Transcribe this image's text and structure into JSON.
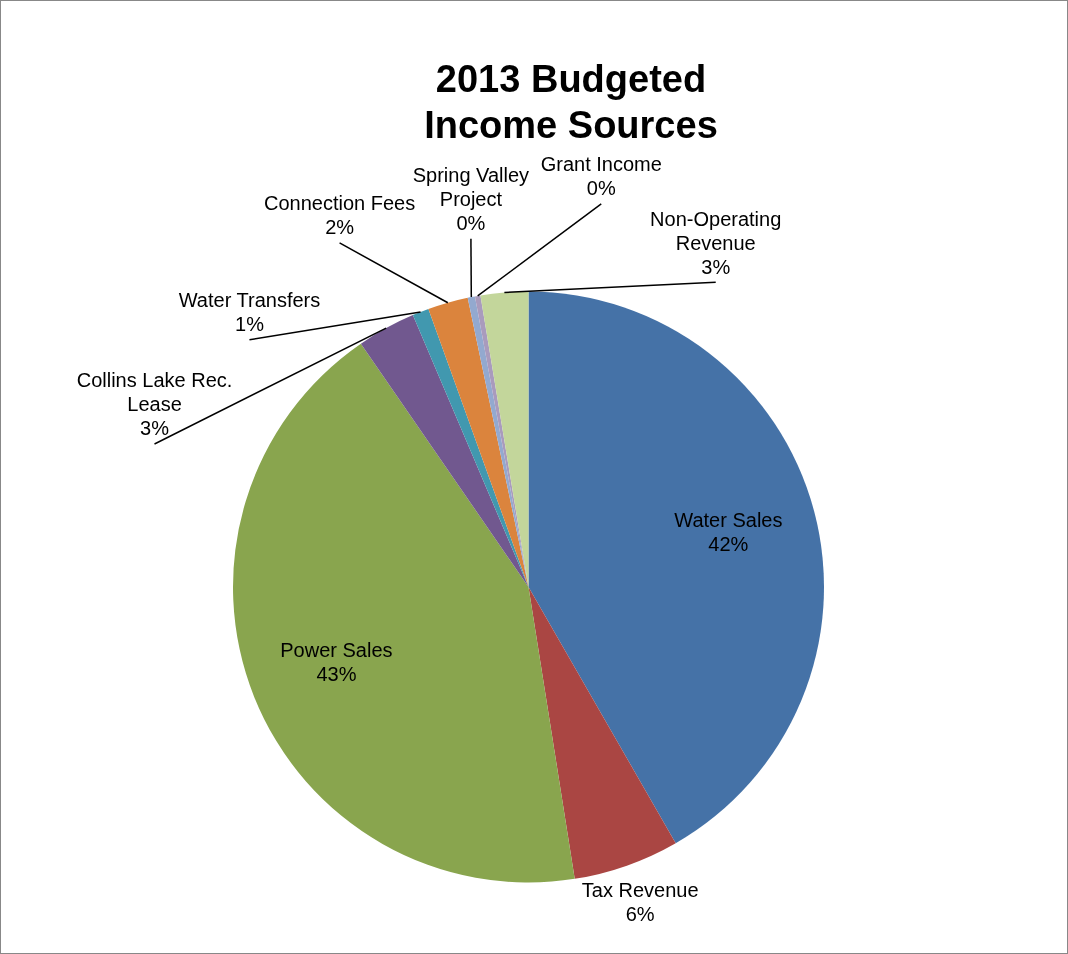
{
  "chart_data": {
    "type": "pie",
    "title": "2013 Budgeted Income Sources",
    "categories": [
      "Water Sales",
      "Tax Revenue",
      "Power Sales",
      "Collins Lake Rec. Lease",
      "Water Transfers",
      "Connection Fees",
      "Spring Valley Project",
      "Grant Income",
      "Non-Operating Revenue"
    ],
    "values": [
      41.7,
      5.8,
      42.9,
      3.2,
      0.9,
      2.2,
      0.4,
      0.3,
      2.6
    ],
    "value_labels": [
      "42%",
      "6%",
      "43%",
      "3%",
      "1%",
      "2%",
      "0%",
      "0%",
      "3%"
    ],
    "colors": [
      "#4572a7",
      "#aa4643",
      "#89a54e",
      "#71588f",
      "#4198af",
      "#db843d",
      "#93a9cf",
      "#a99bbd",
      "#c3d69b"
    ],
    "legend": false
  }
}
